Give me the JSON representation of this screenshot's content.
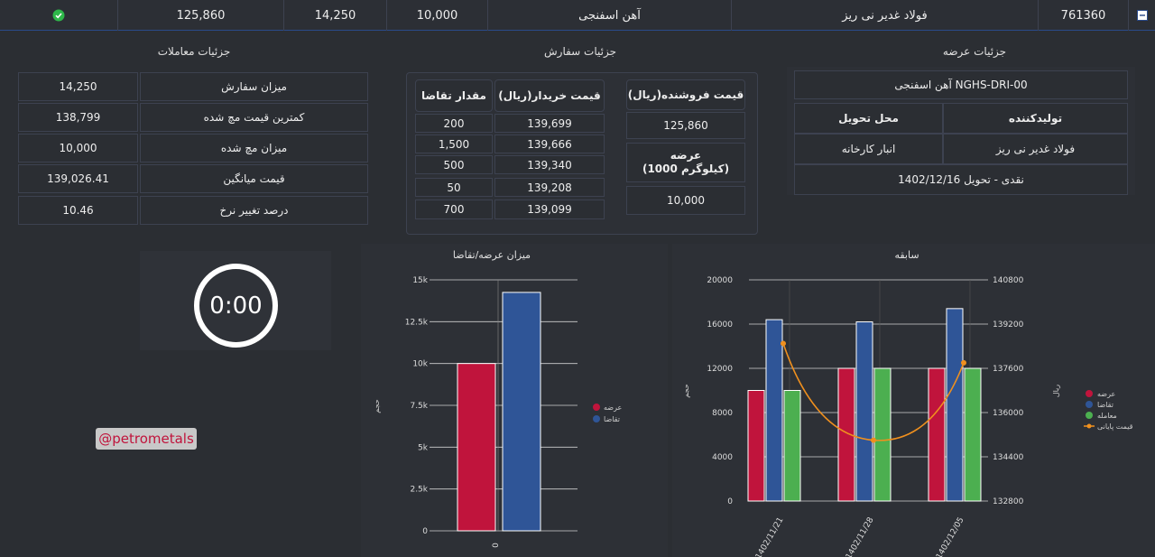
{
  "top_row": {
    "id": "761360",
    "producer": "فولاد غدیر نی ریز",
    "product": "آهن اسفنجی",
    "qty1": "10,000",
    "qty2": "14,250",
    "price": "125,860",
    "status_icon": "check-circle-icon",
    "collapse_icon": "minus-square-icon"
  },
  "offer_details": {
    "title": "جزئیات عرضه",
    "product_code": "آهن اسفنجی NGHS-DRI-00",
    "producer_header": "تولیدکننده",
    "location_header": "محل تحویل",
    "producer_value": "فولاد غدیر نی ریز",
    "location_value": "انبار کارخانه",
    "delivery": "نقدی - تحویل 1402/12/16"
  },
  "order_details": {
    "title": "جزئیات سفارش",
    "seller_price_header": "قیمت فروشنده(ریال)",
    "seller_price_value": "125,860",
    "offer_header": "عرضه\n(1000 کیلوگرم)",
    "offer_value": "10,000",
    "buy_price_header": "قیمت خریدار(ریال)",
    "demand_header": "مقدار تقاضا",
    "rows": [
      {
        "price": "139,699",
        "qty": "200"
      },
      {
        "price": "139,666",
        "qty": "1,500"
      },
      {
        "price": "139,340",
        "qty": "500"
      },
      {
        "price": "139,208",
        "qty": "50"
      },
      {
        "price": "139,099",
        "qty": "700"
      }
    ]
  },
  "trade_details": {
    "title": "جزئیات معاملات",
    "rows": [
      {
        "label": "میزان سفارش",
        "value": "14,250"
      },
      {
        "label": "کمترین قیمت مچ شده",
        "value": "138,799"
      },
      {
        "label": "میزان مچ شده",
        "value": "10,000"
      },
      {
        "label": "قیمت میانگین",
        "value": "139,026.41"
      },
      {
        "label": "درصد تغییر نرخ",
        "value": "10.46"
      }
    ]
  },
  "timer": {
    "value": "0:00"
  },
  "watermark": "@petrometals",
  "colors": {
    "offer": "#c0143c",
    "demand": "#2f5597",
    "trade": "#4caf50",
    "price": "#f0901e",
    "header_border": "#2a4a8a"
  },
  "chart_data": [
    {
      "type": "bar",
      "title": "میزان عرضه/تقاضا",
      "ylabel": "حجم",
      "categories": [
        "0"
      ],
      "ylim": [
        0,
        15000
      ],
      "yticks": [
        "0",
        "2.5k",
        "5k",
        "7.5k",
        "10k",
        "12.5k",
        "15k"
      ],
      "series": [
        {
          "name": "عرضه",
          "values": [
            10000
          ]
        },
        {
          "name": "تقاضا",
          "values": [
            14250
          ]
        }
      ],
      "legend": "right",
      "grid": true
    },
    {
      "type": "bar",
      "title": "سابقه",
      "ylabel": "حجم",
      "y2label": "ریال",
      "categories": [
        "1402/11/21",
        "1402/11/28",
        "1402/12/05"
      ],
      "ylim": [
        0,
        20000
      ],
      "yticks": [
        "0",
        "4000",
        "8000",
        "12000",
        "16000",
        "20000"
      ],
      "y2lim": [
        132800,
        140800
      ],
      "y2ticks": [
        "132800",
        "134400",
        "136000",
        "137600",
        "139200",
        "140800"
      ],
      "series": [
        {
          "name": "عرضه",
          "values": [
            10000,
            12000,
            12000
          ]
        },
        {
          "name": "تقاضا",
          "values": [
            16400,
            16200,
            17400
          ]
        },
        {
          "name": "معامله",
          "values": [
            10000,
            12000,
            12000
          ]
        },
        {
          "name": "قیمت پایانی",
          "type": "line",
          "axis": "y2",
          "values": [
            138500,
            135000,
            137800
          ]
        }
      ],
      "legend": "right",
      "grid": true
    }
  ]
}
